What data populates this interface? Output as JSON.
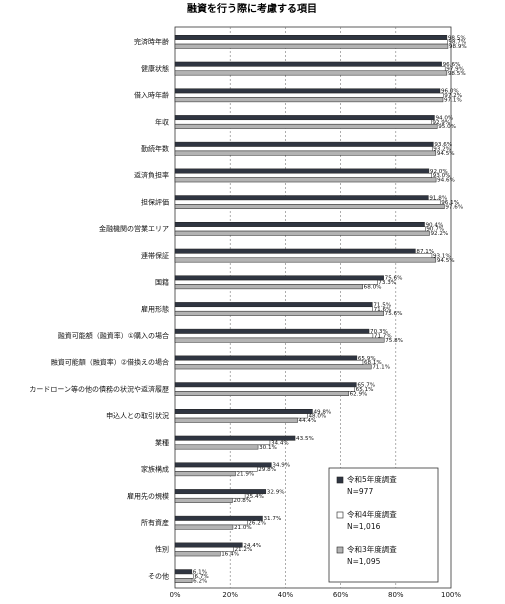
{
  "chart_data": {
    "type": "bar",
    "orientation": "horizontal",
    "title": "融資を行う際に考慮する項目",
    "categories": [
      "完済時年齢",
      "健康状態",
      "借入時年齢",
      "年収",
      "勤続年数",
      "返済負担率",
      "担保評価",
      "金融機関の営業エリア",
      "連帯保証",
      "国籍",
      "雇用形態",
      "融資可能額（融資率）①購入の場合",
      "融資可能額（融資率）②借換えの場合",
      "カードローン等の他の債務の状況や返済履歴",
      "申込人との取引状況",
      "業種",
      "家族構成",
      "雇用先の規模",
      "所有資産",
      "性別",
      "その他"
    ],
    "series": [
      {
        "name": "令和5年度調査\nN=977",
        "color": "#2f3541",
        "values": [
          98.5,
          96.6,
          96.0,
          94.0,
          93.6,
          92.0,
          91.8,
          90.4,
          87.1,
          75.6,
          71.5,
          70.3,
          65.9,
          65.7,
          49.8,
          43.5,
          34.9,
          32.9,
          31.7,
          24.4,
          6.1
        ],
        "labels": [
          "98.5%",
          "96.6%",
          "96.0%",
          "94.0%",
          "93.6%",
          "92.0%",
          "91.8%",
          "90.4%",
          "87.1%",
          "75.6%",
          "71.5%",
          "70.3%",
          "65.9%",
          "65.7%",
          "49.8%",
          "43.5%",
          "34.9%",
          "32.9%",
          "31.7%",
          "24.4%",
          "6.1%"
        ]
      },
      {
        "name": "令和4年度調査\nN=1,016",
        "color": "#ffffff",
        "values": [
          98.7,
          97.9,
          97.2,
          92.9,
          93.2,
          93.0,
          96.1,
          90.7,
          93.1,
          73.3,
          71.6,
          71.7,
          68.1,
          65.1,
          48.0,
          34.4,
          29.8,
          25.4,
          26.2,
          21.2,
          6.7
        ],
        "labels": [
          "98.7%",
          "97.9%",
          "97.2%",
          "92.9%",
          "93.2%",
          "93.0%",
          "96.1%",
          "90.7%",
          "93.1%",
          "73.3%",
          "71.6%",
          "71.7%",
          "68.1%",
          "65.1%",
          "48.0%",
          "34.4%",
          "29.8%",
          "25.4%",
          "26.2%",
          "21.2%",
          "6.7%"
        ]
      },
      {
        "name": "令和3年度調査\nN=1,095",
        "color": "#b3b3b3",
        "values": [
          98.9,
          98.5,
          97.1,
          95.0,
          94.5,
          94.6,
          97.6,
          92.2,
          94.5,
          68.0,
          75.6,
          75.8,
          71.1,
          62.9,
          44.4,
          30.1,
          21.9,
          20.8,
          21.0,
          16.4,
          6.2
        ],
        "labels": [
          "98.9%",
          "98.5%",
          "97.1%",
          "95.0%",
          "94.5%",
          "94.6%",
          "97.6%",
          "92.2%",
          "94.5%",
          "68.0%",
          "75.6%",
          "75.8%",
          "71.1%",
          "62.9%",
          "44.4%",
          "30.1%",
          "21.9%",
          "20.8%",
          "21.0%",
          "16.4%",
          "6.2%"
        ]
      }
    ],
    "xlim": [
      0,
      100
    ],
    "x_ticks": [
      "0%",
      "20%",
      "40%",
      "60%",
      "80%",
      "100%"
    ],
    "grid": "vertical dashed",
    "legend_position": "bottom-right"
  }
}
